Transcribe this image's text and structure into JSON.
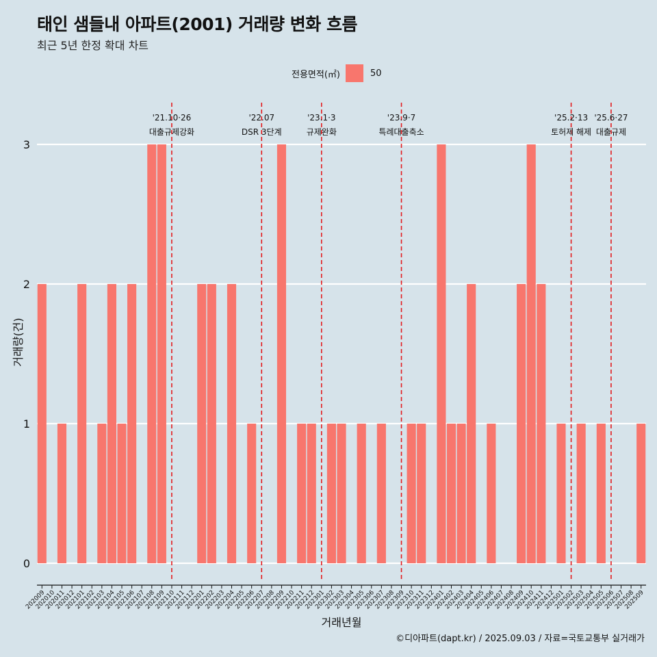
{
  "title": "태인 샘들내 아파트(2001) 거래량 변화 흐름",
  "subtitle": "최근 5년 한정 확대 차트",
  "legend": {
    "title": "전용면적(㎡)",
    "label": "50",
    "color": "#f8766d"
  },
  "caption": "©디아파트(dapt.kr) / 2025.09.03 / 자료=국토교통부 실거래가",
  "chart_data": {
    "type": "bar",
    "xlabel": "거래년월",
    "ylabel": "거래량(건)",
    "ylim": [
      0,
      3
    ],
    "yticks": [
      0,
      1,
      2,
      3
    ],
    "grid": true,
    "legend_position": "top",
    "bar_color": "#f8766d",
    "categories": [
      "202009",
      "202010",
      "202011",
      "202012",
      "202101",
      "202102",
      "202103",
      "202104",
      "202105",
      "202106",
      "202107",
      "202108",
      "202109",
      "202110",
      "202111",
      "202112",
      "202201",
      "202202",
      "202203",
      "202204",
      "202205",
      "202206",
      "202207",
      "202208",
      "202209",
      "202210",
      "202211",
      "202212",
      "202301",
      "202302",
      "202303",
      "202304",
      "202305",
      "202306",
      "202307",
      "202308",
      "202309",
      "202310",
      "202311",
      "202312",
      "202401",
      "202402",
      "202403",
      "202404",
      "202405",
      "202406",
      "202407",
      "202408",
      "202409",
      "202410",
      "202411",
      "202412",
      "202501",
      "202502",
      "202503",
      "202504",
      "202505",
      "202506",
      "202507",
      "202508",
      "202509"
    ],
    "values": [
      2,
      0,
      1,
      0,
      2,
      0,
      1,
      2,
      1,
      2,
      0,
      3,
      3,
      0,
      0,
      0,
      2,
      2,
      0,
      2,
      0,
      1,
      0,
      0,
      3,
      0,
      1,
      1,
      0,
      1,
      1,
      0,
      1,
      0,
      1,
      0,
      0,
      1,
      1,
      0,
      3,
      1,
      1,
      2,
      0,
      1,
      0,
      0,
      2,
      3,
      2,
      0,
      1,
      0,
      1,
      0,
      1,
      0,
      0,
      0,
      1
    ],
    "annotations": [
      {
        "category": "202110",
        "date": "'21.10·26",
        "text": "대출규제강화"
      },
      {
        "category": "202207",
        "date": "'22.07",
        "text": "DSR 3단계"
      },
      {
        "category": "202301",
        "date": "'23.1·3",
        "text": "규제완화"
      },
      {
        "category": "202309",
        "date": "'23.9·7",
        "text": "특례대출축소"
      },
      {
        "category": "202502",
        "date": "'25.2·13",
        "text": "토허제 해제"
      },
      {
        "category": "202506",
        "date": "'25.6·27",
        "text": "대출규제"
      }
    ]
  }
}
